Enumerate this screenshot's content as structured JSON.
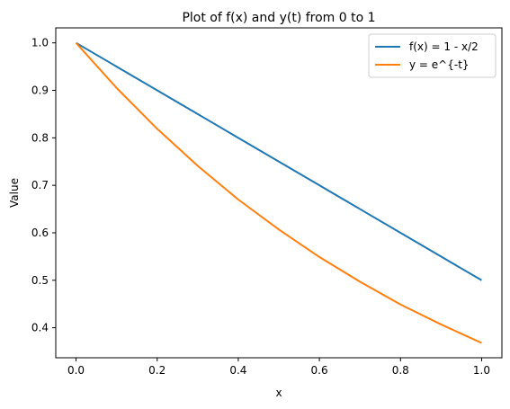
{
  "chart_data": {
    "type": "line",
    "title": "Plot of f(x) and y(t) from 0 to 1",
    "xlabel": "x",
    "ylabel": "Value",
    "xlim": [
      -0.05,
      1.05
    ],
    "ylim": [
      0.3368,
      1.0316
    ],
    "xticks": [
      0.0,
      0.2,
      0.4,
      0.6,
      0.8,
      1.0
    ],
    "yticks": [
      0.4,
      0.5,
      0.6,
      0.7,
      0.8,
      0.9,
      1.0
    ],
    "xtick_labels": [
      "0.0",
      "0.2",
      "0.4",
      "0.6",
      "0.8",
      "1.0"
    ],
    "ytick_labels": [
      "0.4",
      "0.5",
      "0.6",
      "0.7",
      "0.8",
      "0.9",
      "1.0"
    ],
    "grid": false,
    "legend_position": "top-right",
    "series": [
      {
        "name": "f(x) = 1 - x/2",
        "color": "#1f77b4",
        "x": [
          0.0,
          0.1,
          0.2,
          0.3,
          0.4,
          0.5,
          0.6,
          0.7,
          0.8,
          0.9,
          1.0
        ],
        "y": [
          1.0,
          0.95,
          0.9,
          0.85,
          0.8,
          0.75,
          0.7,
          0.65,
          0.6,
          0.55,
          0.5
        ]
      },
      {
        "name": "y = e^{-t}",
        "color": "#ff7f0e",
        "x": [
          0.0,
          0.1,
          0.2,
          0.3,
          0.4,
          0.5,
          0.6,
          0.7,
          0.8,
          0.9,
          1.0
        ],
        "y": [
          1.0,
          0.905,
          0.819,
          0.741,
          0.67,
          0.607,
          0.549,
          0.497,
          0.449,
          0.407,
          0.368
        ]
      }
    ]
  }
}
